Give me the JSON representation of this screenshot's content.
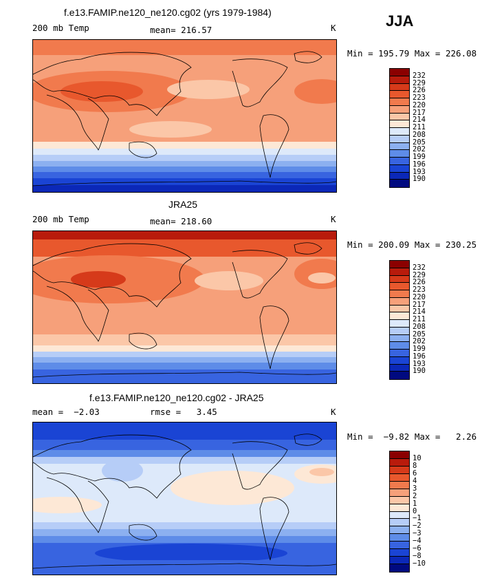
{
  "season": "JJA",
  "colors": {
    "temp_scale": [
      "#8b0000",
      "#b81b0c",
      "#d63a1a",
      "#e8582d",
      "#f17a4d",
      "#f6a07a",
      "#fbc7a8",
      "#fde8d6",
      "#dde9fa",
      "#b6cdf7",
      "#8cb0f0",
      "#5e8ce8",
      "#3864e0",
      "#1a44d4",
      "#0b28b8",
      "#000a80"
    ],
    "diff_scale": [
      "#8b0000",
      "#b81b0c",
      "#d63a1a",
      "#e8582d",
      "#f17a4d",
      "#f6a07a",
      "#fbc7a8",
      "#fde8d6",
      "#dde9fa",
      "#b6cdf7",
      "#8cb0f0",
      "#5e8ce8",
      "#3864e0",
      "#1a44d4",
      "#0b28b8",
      "#000a80"
    ]
  },
  "panels": [
    {
      "title": "f.e13.FAMIP.ne120_ne120.cg02 (yrs 1979-1984)",
      "left_label": "200 mb Temp",
      "center_label": "mean= 216.57",
      "units": "K",
      "minmax": "Min = 195.79 Max = 226.08",
      "levels": [
        "232",
        "229",
        "226",
        "223",
        "220",
        "217",
        "214",
        "211",
        "208",
        "205",
        "202",
        "199",
        "196",
        "193",
        "190"
      ]
    },
    {
      "title": "JRA25",
      "left_label": "200 mb Temp",
      "center_label": "mean= 218.60",
      "units": "K",
      "minmax": "Min = 200.09 Max = 230.25",
      "levels": [
        "232",
        "229",
        "226",
        "223",
        "220",
        "217",
        "214",
        "211",
        "208",
        "205",
        "202",
        "199",
        "196",
        "193",
        "190"
      ]
    },
    {
      "title": "f.e13.FAMIP.ne120_ne120.cg02 - JRA25",
      "left_label": "mean =  −2.03",
      "center_label": "rmse =   3.45",
      "units": "K",
      "minmax": "Min =  −9.82 Max =   2.26",
      "levels": [
        "10",
        "8",
        "6",
        "4",
        "3",
        "2",
        "1",
        "0",
        "−1",
        "−2",
        "−3",
        "−4",
        "−6",
        "−8",
        "−10"
      ]
    }
  ]
}
